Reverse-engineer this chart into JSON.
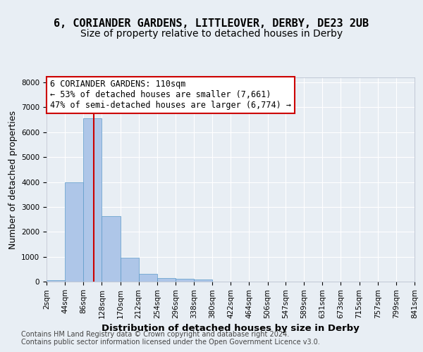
{
  "title_line1": "6, CORIANDER GARDENS, LITTLEOVER, DERBY, DE23 2UB",
  "title_line2": "Size of property relative to detached houses in Derby",
  "xlabel": "Distribution of detached houses by size in Derby",
  "ylabel": "Number of detached properties",
  "bar_values": [
    70,
    3980,
    6560,
    2620,
    960,
    310,
    130,
    100,
    80,
    0,
    0,
    0,
    0,
    0,
    0,
    0,
    0,
    0,
    0,
    0
  ],
  "bin_edges": [
    2,
    44,
    86,
    128,
    170,
    212,
    254,
    296,
    338,
    380,
    422,
    464,
    506,
    547,
    589,
    631,
    673,
    715,
    757,
    799,
    841
  ],
  "tick_labels": [
    "2sqm",
    "44sqm",
    "86sqm",
    "128sqm",
    "170sqm",
    "212sqm",
    "254sqm",
    "296sqm",
    "338sqm",
    "380sqm",
    "422sqm",
    "464sqm",
    "506sqm",
    "547sqm",
    "589sqm",
    "631sqm",
    "673sqm",
    "715sqm",
    "757sqm",
    "799sqm",
    "841sqm"
  ],
  "bar_color": "#aec6e8",
  "bar_edge_color": "#5a9ac8",
  "vline_x": 110,
  "vline_color": "#cc0000",
  "annotation_text": "6 CORIANDER GARDENS: 110sqm\n← 53% of detached houses are smaller (7,661)\n47% of semi-detached houses are larger (6,774) →",
  "annotation_box_color": "#cc0000",
  "annotation_bg": "#ffffff",
  "ylim": [
    0,
    8200
  ],
  "yticks": [
    0,
    1000,
    2000,
    3000,
    4000,
    5000,
    6000,
    7000,
    8000
  ],
  "background_color": "#e8eef4",
  "plot_bg_color": "#e8eef4",
  "footer_line1": "Contains HM Land Registry data © Crown copyright and database right 2024.",
  "footer_line2": "Contains public sector information licensed under the Open Government Licence v3.0.",
  "grid_color": "#ffffff",
  "title_fontsize": 11,
  "subtitle_fontsize": 10,
  "axis_label_fontsize": 9,
  "tick_fontsize": 7.5,
  "annotation_fontsize": 8.5,
  "footer_fontsize": 7
}
